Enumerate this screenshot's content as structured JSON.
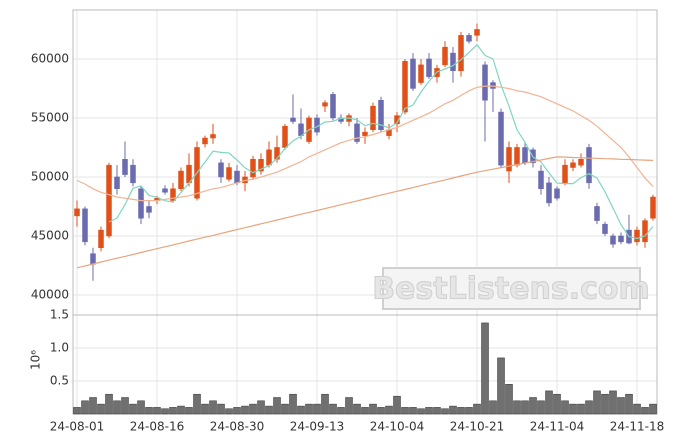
{
  "chart_data": [
    {
      "type": "candlestick",
      "open": [
        46700,
        47300,
        43500,
        44000,
        45000,
        50000,
        51500,
        51000,
        49000,
        47500,
        48000,
        49000,
        48000,
        49000,
        49500,
        48200,
        52800,
        53300,
        51200,
        49800,
        50500,
        49500,
        50000,
        50500,
        51000,
        51500,
        52500,
        55000,
        54500,
        53000,
        55000,
        56000,
        57000,
        55000,
        54700,
        54500,
        53500,
        54000,
        56500,
        53500,
        54500,
        55500,
        60000,
        58000,
        60000,
        58500,
        59500,
        60500,
        59000,
        62000,
        62000,
        59500,
        58000,
        55500,
        50500,
        51000,
        52500,
        52300,
        50500,
        49500,
        49000,
        49500,
        50800,
        51000,
        52500,
        47500,
        46000,
        45000,
        45000,
        45500,
        44500,
        44500,
        46500
      ],
      "high": [
        48000,
        47500,
        44000,
        45800,
        51200,
        51000,
        53000,
        51500,
        49200,
        48000,
        48400,
        49300,
        49500,
        50800,
        52000,
        53000,
        53500,
        54500,
        51500,
        51200,
        51000,
        50500,
        51800,
        52000,
        53000,
        53500,
        54500,
        57000,
        55800,
        55200,
        55300,
        56500,
        57200,
        55300,
        55400,
        55000,
        54200,
        56300,
        56800,
        54500,
        55500,
        60000,
        60500,
        60000,
        60500,
        59500,
        61500,
        61000,
        62300,
        62200,
        63000,
        59800,
        58200,
        55800,
        53000,
        52800,
        53000,
        52500,
        51000,
        50000,
        49200,
        51500,
        51500,
        52000,
        52800,
        47800,
        46200,
        45200,
        45300,
        46800,
        45800,
        46500,
        48500
      ],
      "low": [
        45800,
        44200,
        41200,
        43700,
        44800,
        48500,
        50000,
        49200,
        46000,
        46500,
        47700,
        48500,
        47800,
        48800,
        49200,
        48000,
        52500,
        52800,
        49500,
        49600,
        49300,
        48800,
        49800,
        50200,
        50800,
        51200,
        52300,
        54500,
        53200,
        52800,
        53500,
        55500,
        54800,
        54500,
        54300,
        52800,
        52800,
        53800,
        53800,
        53200,
        53800,
        55300,
        57300,
        57800,
        58300,
        58000,
        59300,
        58000,
        58500,
        61300,
        61500,
        53000,
        55500,
        50800,
        49500,
        50800,
        51000,
        50800,
        48500,
        47500,
        48000,
        49300,
        50500,
        50800,
        49000,
        46000,
        45000,
        44000,
        44300,
        44300,
        44200,
        44000,
        46300
      ],
      "close": [
        47300,
        44500,
        42600,
        45500,
        51000,
        49000,
        50200,
        49500,
        46500,
        47000,
        48200,
        48700,
        49000,
        50500,
        51000,
        52500,
        53300,
        53600,
        50000,
        50800,
        49500,
        50000,
        51500,
        51500,
        52300,
        52500,
        54300,
        54700,
        53500,
        55000,
        53800,
        56300,
        55000,
        54700,
        55200,
        53000,
        53800,
        56000,
        54000,
        54000,
        55200,
        59800,
        57500,
        59500,
        58500,
        59200,
        61000,
        59000,
        62000,
        61500,
        62500,
        56500,
        57500,
        51000,
        52500,
        52500,
        51200,
        51200,
        49000,
        47800,
        48200,
        51000,
        51200,
        51500,
        49500,
        46300,
        45200,
        44300,
        44500,
        44400,
        45500,
        46300,
        48300
      ],
      "up_color": "#e0501a",
      "down_color": "#6b6bb0",
      "series": [
        {
          "color": "#7fd6c2",
          "values": [
            null,
            null,
            null,
            null,
            46180,
            46520,
            47660,
            49040,
            49240,
            48440,
            48280,
            47980,
            47880,
            48680,
            49480,
            50340,
            51260,
            52180,
            52080,
            52040,
            51440,
            50780,
            50360,
            50660,
            50960,
            51560,
            52420,
            53060,
            53460,
            54000,
            54260,
            54660,
            54720,
            54960,
            55000,
            54840,
            54340,
            54540,
            54400,
            54160,
            54600,
            55800,
            56100,
            57200,
            58100,
            58900,
            59140,
            59440,
            59940,
            60540,
            61200,
            60300,
            60000,
            57800,
            56000,
            54000,
            52940,
            51680,
            51280,
            50340,
            49480,
            49440,
            49440,
            49940,
            50280,
            49900,
            48740,
            47360,
            45960,
            44940,
            44780,
            45000,
            45800
          ]
        },
        {
          "color": "#f2b394",
          "values": [
            49700,
            49400,
            49000,
            48700,
            48500,
            48300,
            48200,
            48100,
            48000,
            48000,
            48000,
            48100,
            48200,
            48300,
            48400,
            48600,
            48800,
            49000,
            49100,
            49300,
            49500,
            49700,
            49800,
            50000,
            50200,
            50400,
            50700,
            51000,
            51300,
            51700,
            52000,
            52300,
            52600,
            52900,
            53100,
            53300,
            53400,
            53600,
            53800,
            54000,
            54200,
            54500,
            54800,
            55100,
            55400,
            55800,
            56200,
            56500,
            56900,
            57300,
            57600,
            57700,
            57700,
            57600,
            57500,
            57300,
            57200,
            57000,
            56800,
            56500,
            56200,
            55900,
            55600,
            55200,
            54800,
            54300,
            53700,
            53100,
            52500,
            51700,
            50800,
            49900,
            49200
          ]
        },
        {
          "color": "#e8a47c",
          "values": [
            42300,
            42460,
            42620,
            42790,
            42950,
            43110,
            43270,
            43430,
            43600,
            43760,
            43920,
            44080,
            44240,
            44410,
            44570,
            44730,
            44890,
            45050,
            45220,
            45380,
            45540,
            45700,
            45860,
            46030,
            46190,
            46350,
            46510,
            46670,
            46840,
            47000,
            47160,
            47320,
            47480,
            47650,
            47810,
            47970,
            48130,
            48290,
            48460,
            48620,
            48780,
            48940,
            49100,
            49270,
            49430,
            49590,
            49750,
            49910,
            50080,
            50240,
            50400,
            50530,
            50660,
            50790,
            50920,
            51050,
            51180,
            51310,
            51440,
            51570,
            51700,
            51680,
            51650,
            51630,
            51600,
            51580,
            51550,
            51530,
            51500,
            51480,
            51450,
            51430,
            51400
          ]
        }
      ],
      "ylim": [
        38300,
        64150
      ],
      "yticks": [
        40000,
        45000,
        50000,
        55000,
        60000
      ],
      "grid": true,
      "watermark": "BestListens.com"
    },
    {
      "type": "bar",
      "categories": [
        "24-08-01",
        null,
        null,
        null,
        null,
        null,
        null,
        null,
        null,
        null,
        "24-08-16",
        null,
        null,
        null,
        null,
        null,
        null,
        null,
        null,
        null,
        "24-08-30",
        null,
        null,
        null,
        null,
        null,
        null,
        null,
        null,
        null,
        "24-09-13",
        null,
        null,
        null,
        null,
        null,
        null,
        null,
        null,
        null,
        "24-10-04",
        null,
        null,
        null,
        null,
        null,
        null,
        null,
        null,
        null,
        "24-10-21",
        null,
        null,
        null,
        null,
        null,
        null,
        null,
        null,
        null,
        "24-11-04",
        null,
        null,
        null,
        null,
        null,
        null,
        null,
        null,
        null,
        "24-11-18",
        null,
        null
      ],
      "values": [
        0.1,
        0.2,
        0.25,
        0.15,
        0.3,
        0.2,
        0.25,
        0.15,
        0.2,
        0.1,
        0.1,
        0.08,
        0.1,
        0.12,
        0.1,
        0.3,
        0.15,
        0.2,
        0.15,
        0.08,
        0.1,
        0.12,
        0.15,
        0.2,
        0.12,
        0.25,
        0.15,
        0.3,
        0.12,
        0.15,
        0.15,
        0.3,
        0.15,
        0.1,
        0.25,
        0.15,
        0.1,
        0.15,
        0.1,
        0.12,
        0.27,
        0.1,
        0.1,
        0.08,
        0.1,
        0.1,
        0.08,
        0.12,
        0.1,
        0.1,
        0.15,
        1.38,
        0.2,
        0.85,
        0.45,
        0.2,
        0.2,
        0.25,
        0.2,
        0.35,
        0.3,
        0.2,
        0.15,
        0.15,
        0.2,
        0.35,
        0.3,
        0.35,
        0.25,
        0.3,
        0.15,
        0.1,
        0.15
      ],
      "color": "#707070",
      "ylim": [
        0,
        1.5
      ],
      "yticks": [
        0.5,
        {
          "value": 1,
          "label": "1.0"
        },
        1.5
      ],
      "grid": true,
      "y_offset_label": "10⁶"
    }
  ]
}
